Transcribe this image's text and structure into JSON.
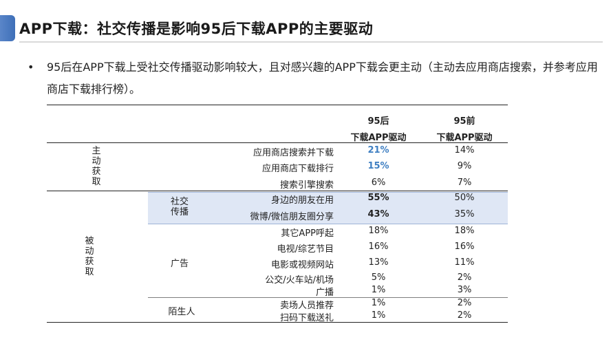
{
  "title": "APP下载：社交传播是影响95后下载APP的主要驱动",
  "bullet": {
    "marker": "•",
    "text": "95后在APP下载上受社交传播驱动影响较大，且对感兴趣的APP下载会更主动（主动去应用商店搜索，并参考应用商店下载排行榜）。"
  },
  "table": {
    "col_headers": {
      "c95h_line1": "95后",
      "c95h_line2": "下载APP驱动",
      "c95q_line1": "95前",
      "c95q_line2": "下载APP驱动"
    },
    "groups": {
      "active": "主动获取",
      "passive": "被动获取",
      "social": "社交传播",
      "ads": "广告",
      "stranger": "陌生人"
    },
    "rows": [
      {
        "label": "应用商店搜索并下载",
        "v95h": "21%",
        "v95q": "14%"
      },
      {
        "label": "应用商店下载排行",
        "v95h": "15%",
        "v95q": "9%"
      },
      {
        "label": "搜索引擎搜索",
        "v95h": "6%",
        "v95q": "7%"
      },
      {
        "label": "身边的朋友在用",
        "v95h": "55%",
        "v95q": "50%"
      },
      {
        "label": "微博/微信朋友圈分享",
        "v95h": "43%",
        "v95q": "35%"
      },
      {
        "label": "其它APP呼起",
        "v95h": "18%",
        "v95q": "18%"
      },
      {
        "label": "电视/综艺节目",
        "v95h": "16%",
        "v95q": "16%"
      },
      {
        "label": "电影或视频网站",
        "v95h": "13%",
        "v95q": "11%"
      },
      {
        "label": "公交/火车站/机场",
        "v95h": "5%",
        "v95q": "2%"
      },
      {
        "label": "广播",
        "v95h": "1%",
        "v95q": "3%"
      },
      {
        "label": "卖场人员推荐",
        "v95h": "1%",
        "v95q": "2%"
      },
      {
        "label": "扫码下载送礼",
        "v95h": "1%",
        "v95q": "2%"
      }
    ]
  },
  "colors": {
    "accent": "#4a7bc0",
    "highlight_text": "#3f7fc2",
    "band": "#dfe7f5"
  }
}
